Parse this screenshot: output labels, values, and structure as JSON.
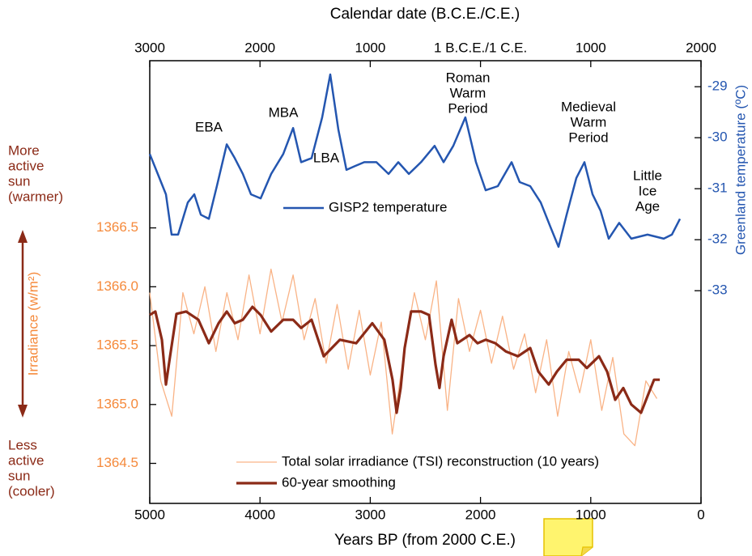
{
  "chart_data": {
    "type": "line",
    "title": "Calendar date (B.C.E./C.E.)",
    "x_label": "Years BP (from 2000 C.E.)",
    "y_label": "Irradiance (w/m²)",
    "y2_label": "Greenland temperature (ºC)",
    "side_notes": {
      "top": [
        "More",
        "active",
        "sun",
        "(warmer)"
      ],
      "bottom": [
        "Less",
        "active",
        "sun",
        "(cooler)"
      ]
    },
    "annotations": [
      {
        "lines": [
          "EBA"
        ]
      },
      {
        "lines": [
          "MBA"
        ]
      },
      {
        "lines": [
          "LBA"
        ]
      },
      {
        "lines": [
          "Roman",
          "Warm",
          "Period"
        ]
      },
      {
        "lines": [
          "Medieval",
          "Warm",
          "Period"
        ]
      },
      {
        "lines": [
          "Little",
          "Ice",
          "Age"
        ]
      }
    ],
    "xlim": [
      5000,
      0
    ],
    "xticks": [
      5000,
      4000,
      3000,
      2000,
      1000,
      0
    ],
    "x2lim": [
      -3000,
      2000
    ],
    "x2ticks": [
      {
        "value": -3000,
        "label": "3000"
      },
      {
        "value": -2000,
        "label": "2000"
      },
      {
        "value": -1000,
        "label": "1000"
      },
      {
        "value": 0,
        "label": "1 B.C.E./1 C.E."
      },
      {
        "value": 1000,
        "label": "1000"
      },
      {
        "value": 2000,
        "label": "2000"
      }
    ],
    "ylim": [
      1364.16,
      1367.92
    ],
    "yticks": [
      1364.5,
      {
        "value": 1365,
        "label": "1365.0"
      },
      1365.5,
      {
        "value": 1366,
        "label": "1366.0"
      },
      1366.5
    ],
    "y2lim": [
      -37.17,
      -28.49
    ],
    "y2ticks": [
      -33,
      -32,
      -31,
      -30,
      -29
    ],
    "series": [
      {
        "name": "GISP2 temperature",
        "color": "#2456b0",
        "axis": "y2",
        "width": 2.5,
        "x": [
          5000,
          4927,
          4853,
          4802,
          4743,
          4655,
          4596,
          4537,
          4464,
          4391,
          4302,
          4229,
          4156,
          4082,
          3994,
          3899,
          3789,
          3700,
          3627,
          3532,
          3436,
          3363,
          3289,
          3216,
          3142,
          3054,
          2944,
          2834,
          2746,
          2650,
          2540,
          2416,
          2335,
          2247,
          2137,
          2041,
          1953,
          1843,
          1718,
          1645,
          1549,
          1454,
          1366,
          1292,
          1219,
          1131,
          1057,
          984,
          911,
          837,
          742,
          632,
          485,
          338,
          264,
          191
        ],
        "values": [
          -30.32,
          -30.71,
          -31.11,
          -31.9,
          -31.9,
          -31.27,
          -31.11,
          -31.51,
          -31.59,
          -30.95,
          -30.13,
          -30.4,
          -30.71,
          -31.11,
          -31.19,
          -30.71,
          -30.32,
          -29.81,
          -30.48,
          -30.4,
          -29.6,
          -28.76,
          -29.84,
          -30.63,
          -30.56,
          -30.48,
          -30.48,
          -30.71,
          -30.48,
          -30.71,
          -30.48,
          -30.16,
          -30.48,
          -30.16,
          -29.6,
          -30.48,
          -31.03,
          -30.95,
          -30.48,
          -30.87,
          -30.95,
          -31.27,
          -31.75,
          -32.14,
          -31.51,
          -30.79,
          -30.48,
          -31.11,
          -31.43,
          -31.98,
          -31.67,
          -31.98,
          -31.9,
          -31.98,
          -31.9,
          -31.59
        ]
      },
      {
        "name": "Total solar irradiance (TSI) reconstruction (10 years)",
        "color": "#f9b386",
        "width": 1.3,
        "x": [
          5000,
          4900,
          4800,
          4700,
          4600,
          4500,
          4400,
          4300,
          4200,
          4100,
          4000,
          3900,
          3800,
          3700,
          3600,
          3500,
          3400,
          3300,
          3200,
          3100,
          3000,
          2900,
          2800,
          2700,
          2600,
          2500,
          2400,
          2300,
          2200,
          2100,
          2000,
          1900,
          1800,
          1700,
          1600,
          1500,
          1400,
          1300,
          1200,
          1100,
          1000,
          900,
          800,
          700,
          600,
          500,
          400
        ],
        "values": [
          1365.95,
          1365.2,
          1364.9,
          1365.95,
          1365.6,
          1366.0,
          1365.45,
          1365.95,
          1365.55,
          1366.1,
          1365.6,
          1366.15,
          1365.7,
          1366.1,
          1365.55,
          1365.9,
          1365.35,
          1365.85,
          1365.3,
          1365.8,
          1365.25,
          1365.7,
          1364.75,
          1365.4,
          1365.95,
          1365.55,
          1366.05,
          1364.95,
          1365.9,
          1365.45,
          1365.8,
          1365.35,
          1365.75,
          1365.3,
          1365.6,
          1365.1,
          1365.55,
          1364.9,
          1365.45,
          1365.1,
          1365.55,
          1364.95,
          1365.4,
          1364.75,
          1364.65,
          1365.2,
          1365.05
        ]
      },
      {
        "name": "60-year smoothing",
        "color": "#8b2a17",
        "width": 3.2,
        "x": [
          5000,
          4949,
          4890,
          4853,
          4816,
          4758,
          4670,
          4559,
          4464,
          4376,
          4302,
          4229,
          4156,
          4068,
          3994,
          3899,
          3789,
          3700,
          3627,
          3532,
          3422,
          3275,
          3128,
          2982,
          2872,
          2798,
          2761,
          2724,
          2688,
          2629,
          2540,
          2467,
          2408,
          2372,
          2335,
          2262,
          2210,
          2100,
          2027,
          1953,
          1865,
          1770,
          1660,
          1549,
          1476,
          1381,
          1307,
          1219,
          1109,
          1035,
          925,
          852,
          778,
          705,
          632,
          544,
          485,
          426,
          374
        ],
        "values": [
          1365.76,
          1365.79,
          1365.55,
          1365.17,
          1365.41,
          1365.77,
          1365.79,
          1365.72,
          1365.52,
          1365.69,
          1365.79,
          1365.69,
          1365.72,
          1365.83,
          1365.76,
          1365.62,
          1365.72,
          1365.72,
          1365.65,
          1365.72,
          1365.41,
          1365.55,
          1365.52,
          1365.69,
          1365.55,
          1365.21,
          1364.93,
          1365.14,
          1365.48,
          1365.79,
          1365.79,
          1365.76,
          1365.34,
          1365.14,
          1365.41,
          1365.72,
          1365.52,
          1365.59,
          1365.52,
          1365.55,
          1365.52,
          1365.45,
          1365.41,
          1365.48,
          1365.28,
          1365.17,
          1365.28,
          1365.38,
          1365.38,
          1365.31,
          1365.41,
          1365.28,
          1365.04,
          1365.14,
          1365.0,
          1364.93,
          1365.07,
          1365.21,
          1365.21
        ]
      }
    ]
  }
}
